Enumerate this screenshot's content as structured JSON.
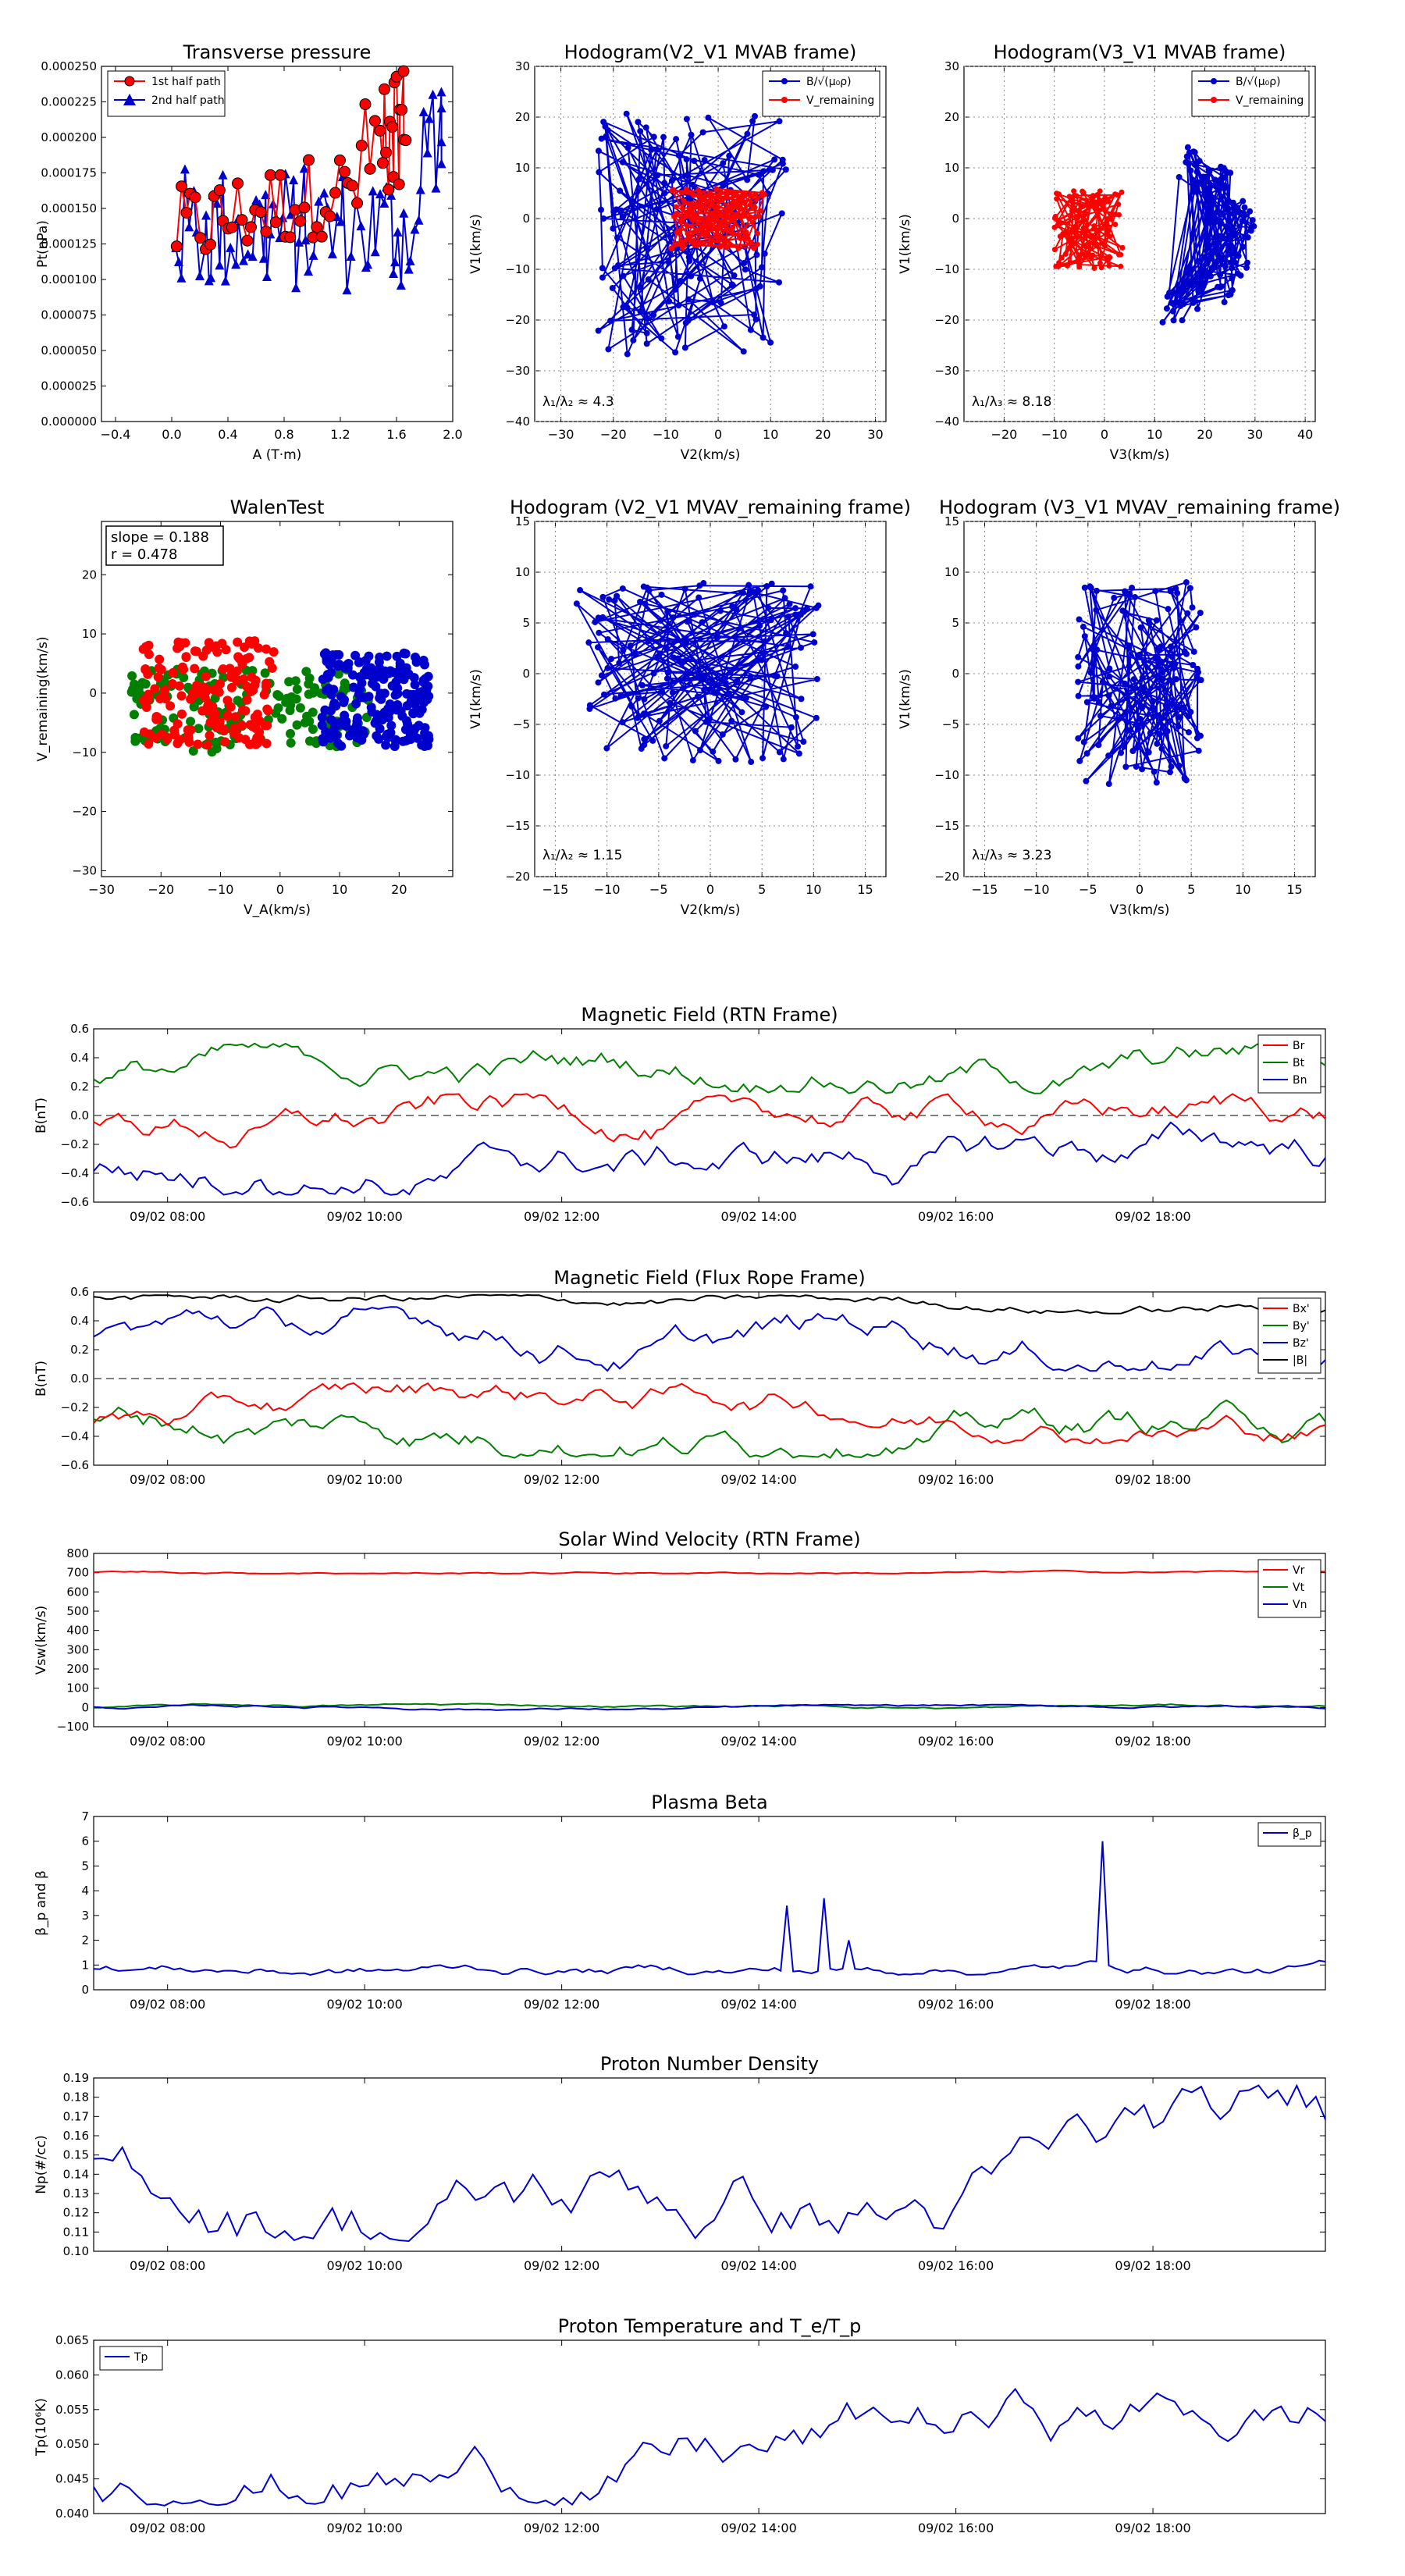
{
  "colors": {
    "red": "#ff0000",
    "blue": "#0000cc",
    "green": "#007f00",
    "black": "#000000",
    "grid": "#888888"
  },
  "time_axis": {
    "start": "09/02 07:15",
    "end": "09/02 19:45",
    "ticks": [
      "09/02 08:00",
      "09/02 10:00",
      "09/02 12:00",
      "09/02 14:00",
      "09/02 16:00",
      "09/02 18:00"
    ]
  },
  "chart_data": [
    {
      "id": "tp",
      "type": "line",
      "title": "Transverse pressure",
      "xlabel": "A (T·m)",
      "ylabel": "Pt(nPa)",
      "xlim": [
        -0.5,
        2.0
      ],
      "ylim": [
        0,
        0.00025
      ],
      "xticks": [
        "−0.4",
        "0.0",
        "0.4",
        "0.8",
        "1.2",
        "1.6",
        "2.0"
      ],
      "yticks": [
        "0.000000",
        "0.000025",
        "0.000050",
        "0.000075",
        "0.000100",
        "0.000125",
        "0.000150",
        "0.000175",
        "0.000200",
        "0.000225",
        "0.000250"
      ],
      "legend": {
        "placement": "top-left",
        "entries": [
          "1st half path",
          "2nd half path"
        ]
      },
      "series": [
        {
          "name": "1st half path",
          "color": "red",
          "marker": "circle"
        },
        {
          "name": "2nd half path",
          "color": "blue",
          "marker": "triangle"
        }
      ]
    },
    {
      "id": "h21",
      "type": "line",
      "title": "Hodogram(V2_V1 MVAB frame)",
      "xlabel": "V2(km/s)",
      "ylabel": "V1(km/s)",
      "xlim": [
        -35,
        32
      ],
      "ylim": [
        -40,
        30
      ],
      "xticks": [
        "−30",
        "−20",
        "−10",
        "0",
        "10",
        "20",
        "30"
      ],
      "yticks": [
        "−40",
        "−30",
        "−20",
        "−10",
        "0",
        "10",
        "20",
        "30"
      ],
      "grid": true,
      "annotation": "λ₁/λ₂ ≈ 4.3",
      "legend": {
        "placement": "top-right",
        "entries": [
          "B/√(μ₀ρ)",
          "V_remaining"
        ]
      }
    },
    {
      "id": "h31",
      "type": "line",
      "title": "Hodogram(V3_V1 MVAB frame)",
      "xlabel": "V3(km/s)",
      "ylabel": "V1(km/s)",
      "xlim": [
        -28,
        42
      ],
      "ylim": [
        -40,
        30
      ],
      "xticks": [
        "−20",
        "−10",
        "0",
        "10",
        "20",
        "30",
        "40"
      ],
      "yticks": [
        "−40",
        "−30",
        "−20",
        "−10",
        "0",
        "10",
        "20",
        "30"
      ],
      "grid": true,
      "annotation": "λ₁/λ₃ ≈ 8.18",
      "legend": {
        "placement": "top-right",
        "entries": [
          "B/√(μ₀ρ)",
          "V_remaining"
        ]
      }
    },
    {
      "id": "walen",
      "type": "scatter",
      "title": "WalenTest",
      "xlabel": "V_A(km/s)",
      "ylabel": "V_remaining(km/s)",
      "xlim": [
        -30,
        29
      ],
      "ylim": [
        -31,
        29
      ],
      "xticks": [
        "−30",
        "−20",
        "−10",
        "0",
        "10",
        "20"
      ],
      "yticks": [
        "−30",
        "−20",
        "−10",
        "0",
        "10",
        "20"
      ],
      "box": [
        "slope = 0.188",
        "r = 0.478"
      ]
    },
    {
      "id": "h21r",
      "type": "line",
      "title": "Hodogram (V2_V1 MVAV_remaining frame)",
      "xlabel": "V2(km/s)",
      "ylabel": "V1(km/s)",
      "xlim": [
        -17,
        17
      ],
      "ylim": [
        -20,
        15
      ],
      "xticks": [
        "−15",
        "−10",
        "−5",
        "0",
        "5",
        "10",
        "15"
      ],
      "yticks": [
        "−20",
        "−15",
        "−10",
        "−5",
        "0",
        "5",
        "10",
        "15"
      ],
      "grid": true,
      "annotation": "λ₁/λ₂ ≈ 1.15"
    },
    {
      "id": "h31r",
      "type": "line",
      "title": "Hodogram (V3_V1 MVAV_remaining frame)",
      "xlabel": "V3(km/s)",
      "ylabel": "V1(km/s)",
      "xlim": [
        -17,
        17
      ],
      "ylim": [
        -20,
        15
      ],
      "xticks": [
        "−15",
        "−10",
        "−5",
        "0",
        "5",
        "10",
        "15"
      ],
      "yticks": [
        "−20",
        "−15",
        "−10",
        "−5",
        "0",
        "5",
        "10",
        "15"
      ],
      "grid": true,
      "annotation": "λ₁/λ₃ ≈ 3.23"
    },
    {
      "id": "rtn",
      "type": "line",
      "title": "Magnetic Field (RTN Frame)",
      "ylabel": "B(nT)",
      "ylim": [
        -0.6,
        0.6
      ],
      "yticks": [
        "−0.6",
        "−0.4",
        "−0.2",
        "0.0",
        "0.2",
        "0.4",
        "0.6"
      ],
      "legend": {
        "placement": "top-right",
        "entries": [
          "Br",
          "Bt",
          "Bn"
        ]
      }
    },
    {
      "id": "frf",
      "type": "line",
      "title": "Magnetic Field (Flux Rope Frame)",
      "ylabel": "B(nT)",
      "ylim": [
        -0.6,
        0.6
      ],
      "yticks": [
        "−0.6",
        "−0.4",
        "−0.2",
        "0.0",
        "0.2",
        "0.4",
        "0.6"
      ],
      "legend": {
        "placement": "top-right",
        "entries": [
          "Bx'",
          "By'",
          "Bz'",
          "|B|"
        ]
      }
    },
    {
      "id": "vsw",
      "type": "line",
      "title": "Solar Wind Velocity (RTN Frame)",
      "ylabel": "Vsw(km/s)",
      "ylim": [
        -100,
        800
      ],
      "yticks": [
        "−100",
        "0",
        "100",
        "200",
        "300",
        "400",
        "500",
        "600",
        "700",
        "800"
      ],
      "legend": {
        "placement": "top-right",
        "entries": [
          "Vr",
          "Vt",
          "Vn"
        ]
      }
    },
    {
      "id": "beta",
      "type": "line",
      "title": "Plasma Beta",
      "ylabel": "β_p and β",
      "ylim": [
        0,
        7
      ],
      "yticks": [
        "0",
        "1",
        "2",
        "3",
        "4",
        "5",
        "6",
        "7"
      ],
      "legend": {
        "placement": "top-right",
        "entries": [
          "β_p"
        ]
      }
    },
    {
      "id": "np",
      "type": "line",
      "title": "Proton Number Density",
      "ylabel": "Np(#/cc)",
      "ylim": [
        0.1,
        0.19
      ],
      "yticks": [
        "0.10",
        "0.11",
        "0.12",
        "0.13",
        "0.14",
        "0.15",
        "0.16",
        "0.17",
        "0.18",
        "0.19"
      ]
    },
    {
      "id": "tpp",
      "type": "line",
      "title": "Proton Temperature and T_e/T_p",
      "ylabel": "Tp(10⁶K)",
      "ylim": [
        0.04,
        0.065
      ],
      "yticks": [
        "0.040",
        "0.045",
        "0.050",
        "0.055",
        "0.060",
        "0.065"
      ],
      "legend": {
        "placement": "top-left",
        "entries": [
          "Tp"
        ]
      }
    }
  ]
}
